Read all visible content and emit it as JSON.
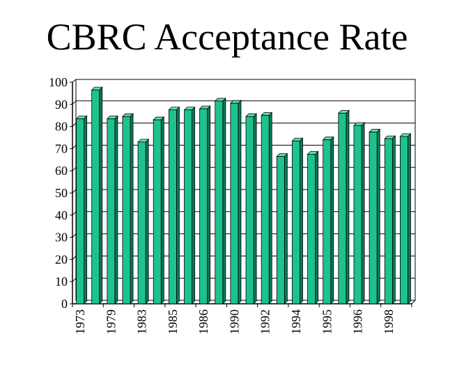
{
  "chart_data": {
    "type": "bar",
    "title": "CBRC Acceptance Rate",
    "xlabel": "",
    "ylabel": "",
    "ylim": [
      0,
      100
    ],
    "yticks": [
      0,
      10,
      20,
      30,
      40,
      50,
      60,
      70,
      80,
      90,
      100
    ],
    "bar_count": 22,
    "values": [
      83.5,
      96.5,
      83.5,
      84.5,
      73,
      83,
      87.5,
      87.5,
      88,
      91.5,
      90.5,
      84.5,
      85,
      66.5,
      73.5,
      67.5,
      74,
      86,
      80.5,
      77.5,
      74.5,
      75.5
    ],
    "x_tick_labels": [
      "1973",
      "1979",
      "1983",
      "1985",
      "1986",
      "1990",
      "1992",
      "1994",
      "1995",
      "1996",
      "1998"
    ],
    "x_tick_every": 2,
    "grid": "horizontal",
    "legend": "none",
    "colors": {
      "bar_face": "#1dc28f",
      "bar_top": "#63e0b4",
      "bar_side": "#0f7a58",
      "bar_outline": "#000000",
      "gridline": "#000000"
    }
  }
}
